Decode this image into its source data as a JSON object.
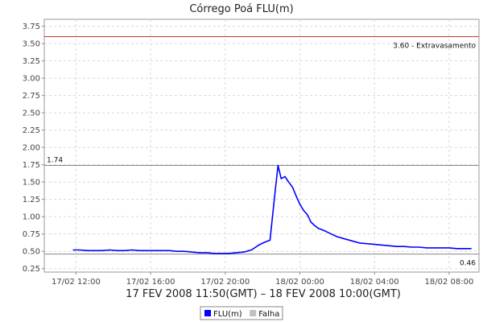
{
  "chart_data": {
    "type": "line",
    "title": "Córrego Poá FLU(m)",
    "xlabel": "17 FEV 2008 11:50(GMT) – 18 FEV 2008 10:00(GMT)",
    "ylabel": "",
    "ylim": [
      0.2,
      3.85
    ],
    "yticks": [
      "0.25",
      "0.50",
      "0.75",
      "1.00",
      "1.25",
      "1.50",
      "1.75",
      "2.00",
      "2.25",
      "2.50",
      "2.75",
      "3.00",
      "3.25",
      "3.50",
      "3.75"
    ],
    "ytick_values": [
      0.25,
      0.5,
      0.75,
      1.0,
      1.25,
      1.5,
      1.75,
      2.0,
      2.25,
      2.5,
      2.75,
      3.0,
      3.25,
      3.5,
      3.75
    ],
    "xlim_hours": [
      10.3,
      33.6
    ],
    "xticks": [
      "17/02 12:00",
      "17/02 16:00",
      "17/02 20:00",
      "18/02 00:00",
      "18/02 04:00",
      "18/02 08:00"
    ],
    "xtick_hours": [
      12,
      16,
      20,
      24,
      28,
      32
    ],
    "grid": true,
    "legend_position": "bottom-center",
    "series": [
      {
        "name": "FLU(m)",
        "color": "#0000ff",
        "x_hours": [
          11.83,
          12.2,
          12.6,
          13.0,
          13.4,
          13.8,
          14.2,
          14.6,
          15.0,
          15.4,
          15.8,
          16.2,
          16.6,
          17.0,
          17.4,
          17.8,
          18.2,
          18.6,
          19.0,
          19.4,
          19.8,
          20.2,
          20.6,
          21.0,
          21.4,
          21.8,
          22.1,
          22.4,
          22.7,
          22.83,
          23.0,
          23.2,
          23.4,
          23.6,
          23.8,
          24.0,
          24.2,
          24.4,
          24.6,
          24.8,
          25.0,
          25.3,
          25.6,
          26.0,
          26.4,
          26.8,
          27.2,
          27.6,
          28.0,
          28.4,
          28.8,
          29.2,
          29.6,
          30.0,
          30.4,
          30.8,
          31.2,
          31.6,
          32.0,
          32.4,
          32.8,
          33.2
        ],
        "values": [
          0.52,
          0.52,
          0.51,
          0.51,
          0.51,
          0.52,
          0.51,
          0.51,
          0.52,
          0.51,
          0.51,
          0.51,
          0.51,
          0.51,
          0.5,
          0.5,
          0.49,
          0.48,
          0.48,
          0.47,
          0.47,
          0.47,
          0.48,
          0.49,
          0.52,
          0.59,
          0.63,
          0.66,
          1.43,
          1.74,
          1.55,
          1.58,
          1.5,
          1.43,
          1.3,
          1.18,
          1.09,
          1.03,
          0.92,
          0.87,
          0.83,
          0.8,
          0.76,
          0.71,
          0.68,
          0.65,
          0.62,
          0.61,
          0.6,
          0.59,
          0.58,
          0.57,
          0.57,
          0.56,
          0.56,
          0.55,
          0.55,
          0.55,
          0.55,
          0.54,
          0.54,
          0.54
        ]
      },
      {
        "name": "Falha",
        "color": "#c0c0c0",
        "x_hours": [],
        "values": []
      }
    ],
    "reference_lines": [
      {
        "value": 3.6,
        "label": "3.60 - Extravasamento",
        "color": "#cc3333"
      },
      {
        "value": 1.74,
        "label": "1.74",
        "color": "#888888"
      },
      {
        "value": 0.46,
        "label": "0.46",
        "color": "#888888"
      }
    ]
  }
}
